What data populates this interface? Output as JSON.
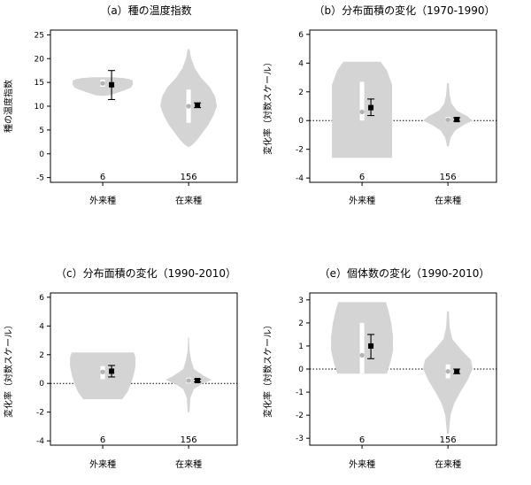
{
  "chart_data": [
    {
      "id": "a",
      "type": "violin",
      "title": "（a）種の温度指数",
      "ylabel": "種の温度指数",
      "ylim": [
        -6,
        26
      ],
      "yticks": [
        -5,
        0,
        5,
        10,
        15,
        20,
        25
      ],
      "ytick_labels": [
        "-5",
        "0",
        "5",
        "10",
        "15",
        "20",
        "25"
      ],
      "zero_line": false,
      "groups": [
        {
          "category": "外来種",
          "n_label": "6",
          "profile": [
            [
              12.2,
              2
            ],
            [
              12.3,
              8
            ],
            [
              12.8,
              16
            ],
            [
              13.3,
              24
            ],
            [
              13.9,
              32
            ],
            [
              14.5,
              34
            ],
            [
              15,
              34
            ],
            [
              15.4,
              34
            ],
            [
              15.7,
              30
            ],
            [
              15.9,
              24
            ],
            [
              16.1,
              12
            ]
          ],
          "box": [
            14.1,
            15.6
          ],
          "median": 14.8,
          "mean": 14.5,
          "ci": [
            11.4,
            17.5
          ]
        },
        {
          "category": "在来種",
          "n_label": "156",
          "profile": [
            [
              1.5,
              1
            ],
            [
              2,
              5
            ],
            [
              3,
              10
            ],
            [
              4.5,
              16
            ],
            [
              6,
              22
            ],
            [
              8,
              28
            ],
            [
              10,
              32
            ],
            [
              12,
              30
            ],
            [
              14,
              24
            ],
            [
              16,
              14
            ],
            [
              18,
              7
            ],
            [
              20,
              3
            ],
            [
              22,
              1
            ]
          ],
          "box": [
            6.5,
            13.5
          ],
          "median": 10,
          "mean": 10.2,
          "ci": [
            9.7,
            10.7
          ]
        }
      ]
    },
    {
      "id": "b",
      "type": "violin",
      "title": "（b）分布面積の変化（1970-1990）",
      "ylabel": "変化率（対数スケール）",
      "ylim": [
        -4.3,
        6.3
      ],
      "yticks": [
        -4,
        -2,
        0,
        2,
        4,
        6
      ],
      "ytick_labels": [
        "-4",
        "-2",
        "0",
        "2",
        "4",
        "6"
      ],
      "zero_line": true,
      "groups": [
        {
          "category": "外来種",
          "n_label": "6",
          "profile": [
            [
              -2.6,
              34
            ],
            [
              -1.5,
              34
            ],
            [
              -0.5,
              34
            ],
            [
              0.5,
              34
            ],
            [
              1.5,
              34
            ],
            [
              2.5,
              34
            ],
            [
              3.5,
              28
            ],
            [
              4.1,
              21
            ]
          ],
          "box": [
            0,
            2.7
          ],
          "median": 0.6,
          "mean": 0.9,
          "ci": [
            0.35,
            1.5
          ]
        },
        {
          "category": "在来種",
          "n_label": "156",
          "profile": [
            [
              -1.8,
              1
            ],
            [
              -1.2,
              3
            ],
            [
              -0.7,
              8
            ],
            [
              -0.3,
              18
            ],
            [
              0,
              28
            ],
            [
              0.3,
              22
            ],
            [
              0.7,
              10
            ],
            [
              1.2,
              4
            ],
            [
              1.8,
              2
            ],
            [
              2.6,
              1
            ]
          ],
          "box": [
            -0.1,
            0.25
          ],
          "median": 0.05,
          "mean": 0.07,
          "ci": [
            -0.05,
            0.2
          ]
        }
      ]
    },
    {
      "id": "c",
      "type": "violin",
      "title": "（c）分布面積の変化（1990-2010）",
      "ylabel": "変化率（対数スケール）",
      "ylim": [
        -4.3,
        6.3
      ],
      "yticks": [
        -4,
        -2,
        0,
        2,
        4,
        6
      ],
      "ytick_labels": [
        "-4",
        "-2",
        "0",
        "2",
        "4",
        "6"
      ],
      "zero_line": true,
      "groups": [
        {
          "category": "外来種",
          "n_label": "6",
          "profile": [
            [
              -1.1,
              22
            ],
            [
              -0.6,
              28
            ],
            [
              0,
              32
            ],
            [
              0.6,
              35
            ],
            [
              1.2,
              37
            ],
            [
              1.8,
              37
            ],
            [
              2.15,
              35
            ]
          ],
          "box": [
            0.3,
            1.2
          ],
          "median": 0.8,
          "mean": 0.85,
          "ci": [
            0.45,
            1.25
          ]
        },
        {
          "category": "在来種",
          "n_label": "156",
          "profile": [
            [
              -2,
              1
            ],
            [
              -1,
              2
            ],
            [
              -0.4,
              6
            ],
            [
              0,
              16
            ],
            [
              0.25,
              26
            ],
            [
              0.5,
              18
            ],
            [
              1,
              6
            ],
            [
              1.6,
              3
            ],
            [
              2.3,
              1
            ],
            [
              3.2,
              0.5
            ]
          ],
          "box": [
            0,
            0.4
          ],
          "median": 0.2,
          "mean": 0.2,
          "ci": [
            0.1,
            0.3
          ]
        }
      ]
    },
    {
      "id": "e",
      "type": "violin",
      "title": "（e）個体数の変化（1990-2010）",
      "ylabel": "変化率（対数スケール）",
      "ylim": [
        -3.3,
        3.3
      ],
      "yticks": [
        -3,
        -2,
        -1,
        0,
        1,
        2,
        3
      ],
      "ytick_labels": [
        "-3",
        "-2",
        "-1",
        "0",
        "1",
        "2",
        "3"
      ],
      "zero_line": true,
      "groups": [
        {
          "category": "外来種",
          "n_label": "6",
          "profile": [
            [
              -0.2,
              28
            ],
            [
              0.3,
              32
            ],
            [
              0.8,
              35
            ],
            [
              1.4,
              35
            ],
            [
              2,
              33
            ],
            [
              2.5,
              30
            ],
            [
              2.9,
              27
            ]
          ],
          "box": [
            -0.2,
            2
          ],
          "median": 0.6,
          "mean": 1,
          "ci": [
            0.45,
            1.5
          ]
        },
        {
          "category": "在来種",
          "n_label": "156",
          "profile": [
            [
              -2.8,
              1
            ],
            [
              -2,
              3
            ],
            [
              -1.5,
              7
            ],
            [
              -1,
              14
            ],
            [
              -0.5,
              22
            ],
            [
              0,
              28
            ],
            [
              0.4,
              26
            ],
            [
              0.8,
              16
            ],
            [
              1.3,
              5
            ],
            [
              1.8,
              2
            ],
            [
              2.5,
              1
            ]
          ],
          "box": [
            -0.4,
            0.2
          ],
          "median": -0.1,
          "mean": -0.1,
          "ci": [
            -0.2,
            0
          ]
        }
      ]
    }
  ]
}
